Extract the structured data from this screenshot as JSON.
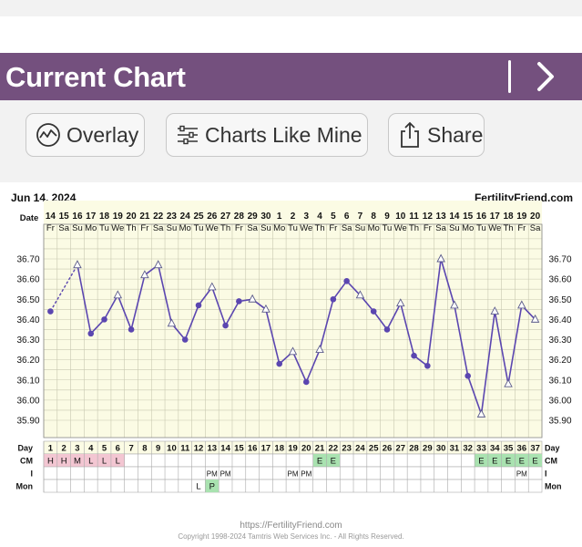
{
  "header": {
    "title": "Current Chart"
  },
  "toolbar": {
    "overlay_label": "Overlay",
    "charts_like_mine_label": "Charts Like Mine",
    "share_label": "Share"
  },
  "chart": {
    "date": "Jun 14, 2024",
    "site": "FertilityFriend.com",
    "date_row_label": "Date",
    "day_row_label": "Day",
    "cm_row_label": "CM",
    "i_row_label": "I",
    "mon_row_label": "Mon",
    "footer_url": "https://FertilityFriend.com",
    "footer_copyright": "Copyright 1998-2024 Tamtris Web Services Inc. - All Rights Reserved.",
    "colors": {
      "line": "#5b46b0",
      "grid_bg": "#fbfbe4",
      "grid_line": "#c8c8b0",
      "h_bg": "#f3c6d2",
      "e_bg": "#a9e2b0"
    }
  },
  "chart_data": {
    "type": "line",
    "dates": [
      "14",
      "15",
      "16",
      "17",
      "18",
      "19",
      "20",
      "21",
      "22",
      "23",
      "24",
      "25",
      "26",
      "27",
      "28",
      "29",
      "30",
      "1",
      "2",
      "3",
      "4",
      "5",
      "6",
      "7",
      "8",
      "9",
      "10",
      "11",
      "12",
      "13",
      "14",
      "15",
      "16",
      "17",
      "18",
      "19",
      "20"
    ],
    "weekdays": [
      "Fr",
      "Sa",
      "Su",
      "Mo",
      "Tu",
      "We",
      "Th",
      "Fr",
      "Sa",
      "Su",
      "Mo",
      "Tu",
      "We",
      "Th",
      "Fr",
      "Sa",
      "Su",
      "Mo",
      "Tu",
      "We",
      "Th",
      "Fr",
      "Sa",
      "Su",
      "Mo",
      "Tu",
      "We",
      "Th",
      "Fr",
      "Sa",
      "Su",
      "Mo",
      "Tu",
      "We",
      "Th",
      "Fr",
      "Sa"
    ],
    "days": [
      "1",
      "2",
      "3",
      "4",
      "5",
      "6",
      "7",
      "8",
      "9",
      "10",
      "11",
      "12",
      "13",
      "14",
      "15",
      "16",
      "17",
      "18",
      "19",
      "20",
      "21",
      "22",
      "23",
      "24",
      "25",
      "26",
      "27",
      "28",
      "29",
      "30",
      "31",
      "32",
      "33",
      "34",
      "35",
      "36",
      "37"
    ],
    "temps": [
      36.44,
      null,
      36.67,
      36.33,
      36.4,
      36.52,
      36.35,
      36.62,
      36.67,
      36.38,
      36.3,
      36.47,
      36.56,
      36.37,
      36.49,
      36.5,
      36.45,
      36.18,
      36.24,
      36.09,
      36.25,
      36.5,
      36.59,
      36.52,
      36.44,
      36.35,
      36.48,
      36.22,
      36.17,
      36.7,
      36.47,
      36.12,
      35.93,
      36.44,
      36.08,
      36.47,
      36.4
    ],
    "markers": [
      "dot",
      "none",
      "tri",
      "dot",
      "dot",
      "tri",
      "dot",
      "tri",
      "tri",
      "tri",
      "dot",
      "dot",
      "tri",
      "dot",
      "dot",
      "tri",
      "tri",
      "dot",
      "tri",
      "dot",
      "tri",
      "dot",
      "dot",
      "tri",
      "dot",
      "dot",
      "tri",
      "dot",
      "dot",
      "tri",
      "tri",
      "dot",
      "tri",
      "tri",
      "tri",
      "tri",
      "tri"
    ],
    "dashed_segment": [
      0,
      2
    ],
    "y_ticks": [
      "36.70",
      "36.60",
      "36.50",
      "36.40",
      "36.30",
      "36.20",
      "36.10",
      "36.00",
      "35.90"
    ],
    "ylim": [
      35.85,
      36.8
    ],
    "cm": [
      "H",
      "H",
      "M",
      "L",
      "L",
      "L",
      "",
      "",
      "",
      "",
      "",
      "",
      "",
      "",
      "",
      "",
      "",
      "",
      "",
      "",
      "E",
      "E",
      "",
      "",
      "",
      "",
      "",
      "",
      "",
      "",
      "",
      "",
      "E",
      "E",
      "E",
      "E",
      "E"
    ],
    "intercourse": [
      "",
      "",
      "",
      "",
      "",
      "",
      "",
      "",
      "",
      "",
      "",
      "",
      "PM",
      "PM",
      "",
      "",
      "",
      "",
      "PM",
      "PM",
      "",
      "",
      "",
      "",
      "",
      "",
      "",
      "",
      "",
      "",
      "",
      "",
      "",
      "",
      "",
      "PM",
      ""
    ],
    "mon": [
      "",
      "",
      "",
      "",
      "",
      "",
      "",
      "",
      "",
      "",
      "",
      "L",
      "P",
      "",
      "",
      "",
      "",
      "",
      "",
      "",
      "",
      "",
      "",
      "",
      "",
      "",
      "",
      "",
      "",
      "",
      "",
      "",
      "",
      "",
      "",
      "",
      ""
    ]
  }
}
